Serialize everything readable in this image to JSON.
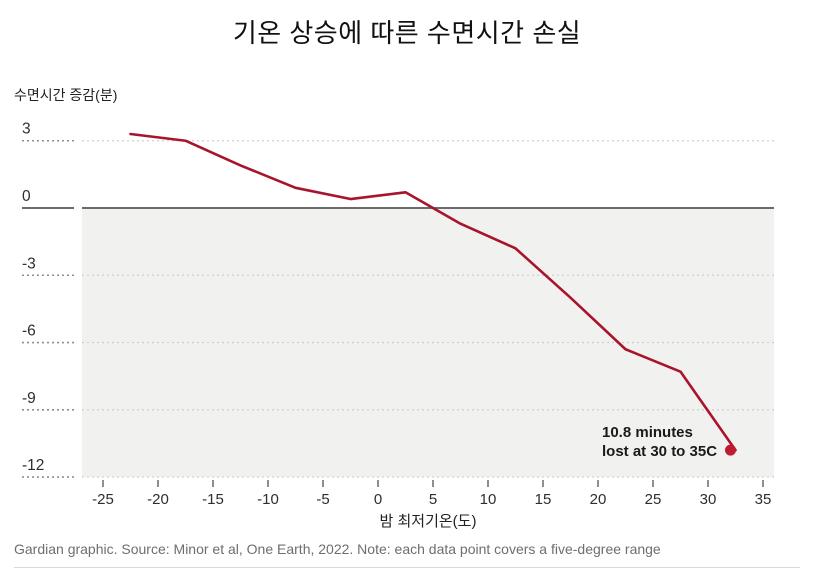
{
  "title": "기온 상승에 따른 수면시간 손실",
  "footer": "Gardian graphic. Source: Minor et al, One Earth, 2022. Note: each data point covers a five-degree range",
  "chart_data": {
    "type": "line",
    "title": "기온 상승에 따른 수면시간 손실",
    "xlabel": "밤 최저기온(도)",
    "ylabel": "수면시간 증감(분)",
    "x": [
      -22.5,
      -17.5,
      -12.5,
      -7.5,
      -2.5,
      2.5,
      7.5,
      12.5,
      17.5,
      22.5,
      27.5,
      32.5
    ],
    "values": [
      3.3,
      3.0,
      1.9,
      0.9,
      0.4,
      0.7,
      -0.7,
      -1.8,
      -4.0,
      -6.3,
      -7.3,
      -10.8
    ],
    "x_ticks": [
      -25,
      -20,
      -15,
      -10,
      -5,
      0,
      5,
      10,
      15,
      20,
      25,
      30,
      35
    ],
    "y_ticks": [
      3,
      0,
      -3,
      -6,
      -9,
      -12
    ],
    "xlim": [
      -27,
      36
    ],
    "ylim": [
      -12,
      3
    ],
    "grid": "horizontal-dotted",
    "legend": "none",
    "shading": "area below zero is light gray",
    "end_point_marker": true,
    "annotation": {
      "line1": "10.8 minutes",
      "line2": "lost at 30 to 35C",
      "at_x": 32.5,
      "at_y": -10.8
    },
    "colors": {
      "line": "#a8142c",
      "end_dot": "#c01a2e",
      "below_zero_shade": "#f1f1ef",
      "zero_line": "#6b6b6b",
      "gridline": "#cfcfcd",
      "tick_stub": "#8f8f8f"
    }
  }
}
